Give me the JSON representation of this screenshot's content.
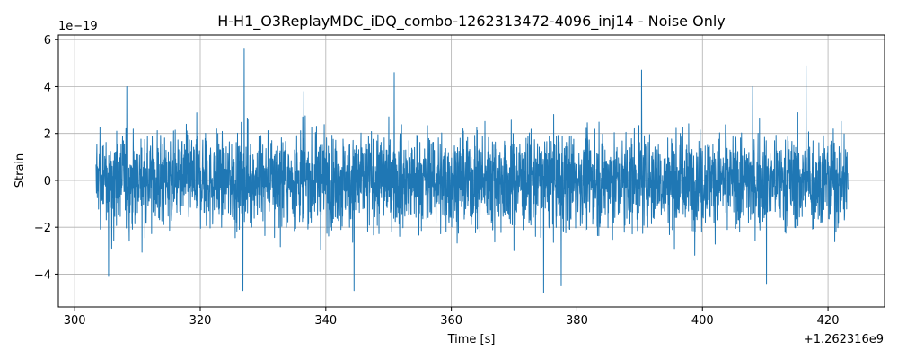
{
  "chart_data": {
    "type": "line",
    "title": "H-H1_O3ReplayMDC_iDQ_combo-1262313472-4096_inj14 - Noise Only",
    "xlabel": "Time [s]",
    "ylabel": "Strain",
    "x_offset_label": "+1.262316e9",
    "y_scale_label": "1e−19",
    "xlim": [
      297.4,
      429.0
    ],
    "ylim": [
      -5.4,
      6.2
    ],
    "x_ticks": [
      300,
      320,
      340,
      360,
      380,
      400,
      420
    ],
    "x_tick_labels": [
      "300",
      "320",
      "340",
      "360",
      "380",
      "400",
      "420"
    ],
    "y_ticks": [
      -4,
      -2,
      0,
      2,
      4,
      6
    ],
    "y_tick_labels": [
      "−4",
      "−2",
      "0",
      "2",
      "4",
      "6"
    ],
    "grid": true,
    "series": [
      {
        "color": "#1f77b4",
        "x_start": 303.4,
        "x_end": 423.2,
        "typical_amplitude": 1.0,
        "envelope_max": 3.4,
        "peaks": [
          {
            "x": 308.3,
            "y": 4.0
          },
          {
            "x": 327.0,
            "y": 5.6
          },
          {
            "x": 336.5,
            "y": 3.8
          },
          {
            "x": 350.9,
            "y": 4.6
          },
          {
            "x": 390.3,
            "y": 4.7
          },
          {
            "x": 408.0,
            "y": 4.0
          },
          {
            "x": 416.5,
            "y": 4.9
          }
        ],
        "troughs": [
          {
            "x": 326.8,
            "y": -4.7
          },
          {
            "x": 344.5,
            "y": -4.7
          },
          {
            "x": 374.7,
            "y": -4.8
          },
          {
            "x": 377.5,
            "y": -4.5
          },
          {
            "x": 410.2,
            "y": -4.4
          },
          {
            "x": 305.4,
            "y": -4.1
          }
        ]
      }
    ]
  }
}
